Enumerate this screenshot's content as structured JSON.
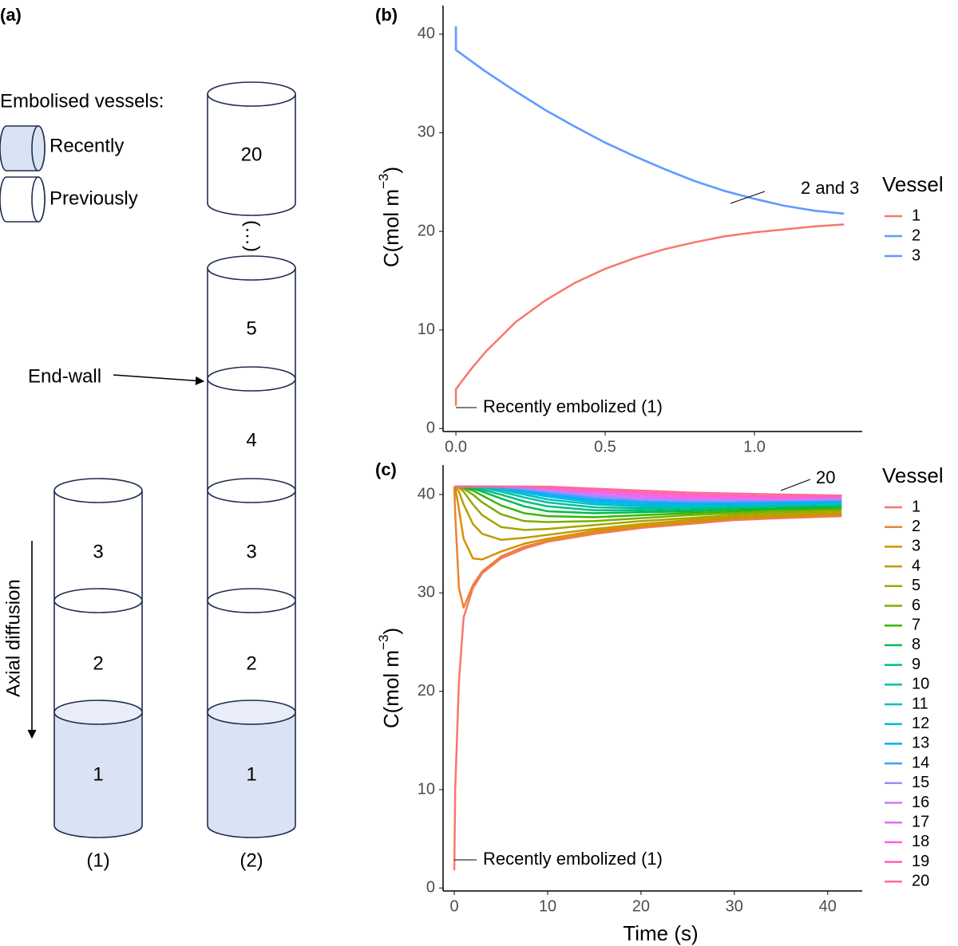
{
  "panel_labels": [
    "(a)",
    "(b)",
    "(c)"
  ],
  "diagram": {
    "legend_title": "Embolised vessels:",
    "legend_items": [
      "Recently",
      "Previously"
    ],
    "end_wall": "End-wall",
    "axial_diffusion": "Axial diffusion",
    "column_1": {
      "vessels": [
        "3",
        "2",
        "1"
      ],
      "label": "(1)"
    },
    "column_2": {
      "top_vessel": "20",
      "ellipsis": "(…)",
      "vessels": [
        "5",
        "4",
        "3",
        "2",
        "1"
      ],
      "label": "(2)"
    }
  },
  "chart_data": [
    {
      "type": "line",
      "x": [
        0,
        0,
        0.05,
        0.1,
        0.2,
        0.3,
        0.4,
        0.5,
        0.6,
        0.7,
        0.8,
        0.9,
        1.0,
        1.1,
        1.2,
        1.3
      ],
      "series": [
        {
          "name": "1",
          "color": "#F8766D",
          "values": [
            2.3,
            4.0,
            6.0,
            7.8,
            10.8,
            13.0,
            14.8,
            16.2,
            17.3,
            18.2,
            18.9,
            19.5,
            19.9,
            20.2,
            20.5,
            20.7
          ]
        },
        {
          "name": "2",
          "color": "#619CFF",
          "values": [
            40.8,
            38.4,
            37.3,
            36.2,
            34.2,
            32.3,
            30.6,
            29.0,
            27.6,
            26.3,
            25.1,
            24.1,
            23.3,
            22.6,
            22.1,
            21.8
          ]
        },
        {
          "name": "3",
          "color": "#619CFF",
          "values": [
            40.8,
            38.4,
            37.3,
            36.2,
            34.2,
            32.3,
            30.6,
            29.0,
            27.6,
            26.3,
            25.1,
            24.1,
            23.3,
            22.6,
            22.1,
            21.8
          ]
        }
      ],
      "xlim": [
        -0.043,
        1.361
      ],
      "xticks": [
        {
          "value": 0,
          "label": "0.0"
        },
        {
          "value": 0.5,
          "label": "0.5"
        },
        {
          "value": 1,
          "label": "1.0"
        }
      ],
      "ylim": [
        -0.3,
        42.9
      ],
      "yticks": [
        0,
        10,
        20,
        30,
        40
      ],
      "y_label": {
        "text": "C(mol m",
        "superscript": "−3",
        "closing": ")"
      },
      "legend_title": "Vessel",
      "annotations": [
        "2 and 3",
        "Recently embolized (1)"
      ]
    },
    {
      "type": "line",
      "x": [
        0,
        0.1,
        0.5,
        1,
        2,
        3,
        5,
        7.5,
        10,
        15,
        20,
        25,
        30,
        35,
        41.5
      ],
      "series": [
        {
          "name": "1",
          "color": "#F8766D",
          "values": [
            1.8,
            10.0,
            21.0,
            27.5,
            30.5,
            32.0,
            33.5,
            34.5,
            35.2,
            36.0,
            36.6,
            37.0,
            37.4,
            37.6,
            37.8
          ]
        },
        {
          "name": "2",
          "color": "#EA8331",
          "values": [
            40.8,
            38.0,
            30.5,
            28.5,
            30.8,
            32.2,
            33.7,
            34.7,
            35.3,
            36.1,
            36.7,
            37.1,
            37.5,
            37.7,
            37.9
          ]
        },
        {
          "name": "3",
          "color": "#D89000",
          "values": [
            40.8,
            40.7,
            38.5,
            35.5,
            33.5,
            33.4,
            34.2,
            35.0,
            35.5,
            36.3,
            36.8,
            37.2,
            37.6,
            37.8,
            38.0
          ]
        },
        {
          "name": "4",
          "color": "#C09B00",
          "values": [
            40.8,
            40.8,
            40.3,
            39.0,
            37.0,
            36.0,
            35.4,
            35.6,
            35.9,
            36.5,
            37.0,
            37.4,
            37.7,
            37.9,
            38.1
          ]
        },
        {
          "name": "5",
          "color": "#A3A500",
          "values": [
            40.8,
            40.8,
            40.7,
            40.3,
            39.0,
            37.9,
            36.7,
            36.4,
            36.5,
            36.9,
            37.3,
            37.6,
            37.9,
            38.1,
            38.3
          ]
        },
        {
          "name": "6",
          "color": "#7CAE00",
          "values": [
            40.8,
            40.8,
            40.8,
            40.6,
            40.0,
            39.2,
            38.0,
            37.3,
            37.2,
            37.3,
            37.6,
            37.9,
            38.1,
            38.3,
            38.5
          ]
        },
        {
          "name": "7",
          "color": "#39B600",
          "values": [
            40.8,
            40.8,
            40.8,
            40.7,
            40.4,
            39.9,
            38.9,
            38.1,
            37.8,
            37.7,
            37.9,
            38.1,
            38.3,
            38.5,
            38.6
          ]
        },
        {
          "name": "8",
          "color": "#00BB4E",
          "values": [
            40.8,
            40.8,
            40.8,
            40.8,
            40.6,
            40.3,
            39.6,
            38.8,
            38.3,
            38.1,
            38.2,
            38.3,
            38.5,
            38.6,
            38.8
          ]
        },
        {
          "name": "9",
          "color": "#00BF7D",
          "values": [
            40.8,
            40.8,
            40.8,
            40.8,
            40.7,
            40.5,
            40.0,
            39.3,
            38.8,
            38.4,
            38.4,
            38.5,
            38.7,
            38.8,
            38.9
          ]
        },
        {
          "name": "10",
          "color": "#00C1A3",
          "values": [
            40.8,
            40.8,
            40.8,
            40.8,
            40.8,
            40.7,
            40.3,
            39.7,
            39.2,
            38.7,
            38.6,
            38.7,
            38.8,
            38.9,
            39.0
          ]
        },
        {
          "name": "11",
          "color": "#00BFC4",
          "values": [
            40.8,
            40.8,
            40.8,
            40.8,
            40.8,
            40.7,
            40.5,
            40.0,
            39.5,
            39.0,
            38.8,
            38.8,
            38.9,
            39.0,
            39.1
          ]
        },
        {
          "name": "12",
          "color": "#00BAE0",
          "values": [
            40.8,
            40.8,
            40.8,
            40.8,
            40.8,
            40.8,
            40.6,
            40.2,
            39.8,
            39.2,
            39.0,
            39.0,
            39.0,
            39.1,
            39.2
          ]
        },
        {
          "name": "13",
          "color": "#00B0F6",
          "values": [
            40.8,
            40.8,
            40.8,
            40.8,
            40.8,
            40.8,
            40.7,
            40.4,
            40.0,
            39.4,
            39.2,
            39.1,
            39.1,
            39.2,
            39.3
          ]
        },
        {
          "name": "14",
          "color": "#35A2FF",
          "values": [
            40.8,
            40.8,
            40.8,
            40.8,
            40.8,
            40.8,
            40.7,
            40.5,
            40.2,
            39.6,
            39.3,
            39.2,
            39.2,
            39.3,
            39.4
          ]
        },
        {
          "name": "15",
          "color": "#9590FF",
          "values": [
            40.8,
            40.8,
            40.8,
            40.8,
            40.8,
            40.8,
            40.8,
            40.6,
            40.3,
            39.8,
            39.5,
            39.4,
            39.4,
            39.4,
            39.5
          ]
        },
        {
          "name": "16",
          "color": "#C77CFF",
          "values": [
            40.8,
            40.8,
            40.8,
            40.8,
            40.8,
            40.8,
            40.8,
            40.7,
            40.5,
            40.0,
            39.6,
            39.5,
            39.5,
            39.5,
            39.6
          ]
        },
        {
          "name": "17",
          "color": "#E76BF3",
          "values": [
            40.8,
            40.8,
            40.8,
            40.8,
            40.8,
            40.8,
            40.8,
            40.7,
            40.6,
            40.2,
            39.8,
            39.6,
            39.6,
            39.6,
            39.7
          ]
        },
        {
          "name": "18",
          "color": "#FA62DB",
          "values": [
            40.8,
            40.8,
            40.8,
            40.8,
            40.8,
            40.8,
            40.8,
            40.8,
            40.7,
            40.3,
            40.0,
            39.8,
            39.7,
            39.7,
            39.8
          ]
        },
        {
          "name": "19",
          "color": "#FF62BC",
          "values": [
            40.8,
            40.8,
            40.8,
            40.8,
            40.8,
            40.8,
            40.8,
            40.8,
            40.7,
            40.5,
            40.2,
            40.0,
            39.9,
            39.8,
            39.8
          ]
        },
        {
          "name": "20",
          "color": "#FF6A98",
          "values": [
            40.8,
            40.8,
            40.8,
            40.8,
            40.8,
            40.8,
            40.8,
            40.8,
            40.8,
            40.6,
            40.4,
            40.2,
            40.1,
            40.0,
            39.9
          ]
        }
      ],
      "xlim": [
        -1.2,
        43.7
      ],
      "xticks": [
        0,
        10,
        20,
        30,
        40
      ],
      "ylim": [
        -0.3,
        43.0
      ],
      "yticks": [
        0,
        10,
        20,
        30,
        40
      ],
      "x_label": "Time (s)",
      "y_label": {
        "text": "C(mol m",
        "superscript": "−3",
        "closing": ")"
      },
      "legend_title": "Vessel",
      "annotations": [
        "20",
        "Recently embolized (1)"
      ]
    }
  ]
}
